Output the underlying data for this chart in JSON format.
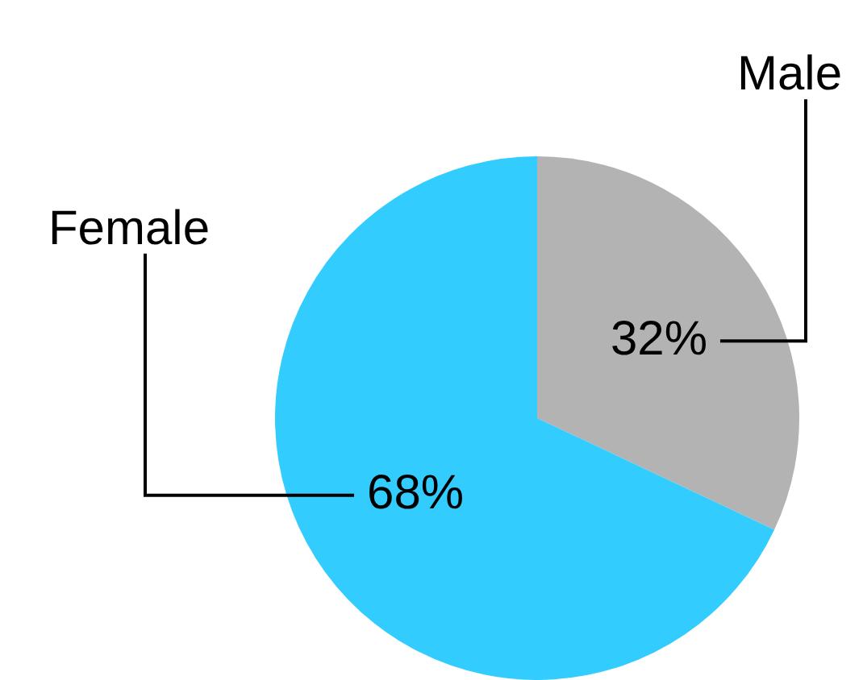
{
  "chart_data": {
    "type": "pie",
    "categories": [
      "Male",
      "Female"
    ],
    "values": [
      32,
      68
    ],
    "colors": [
      "#b3b3b3",
      "#33ccff"
    ],
    "value_labels": [
      "32%",
      "68%"
    ],
    "legend": false
  }
}
